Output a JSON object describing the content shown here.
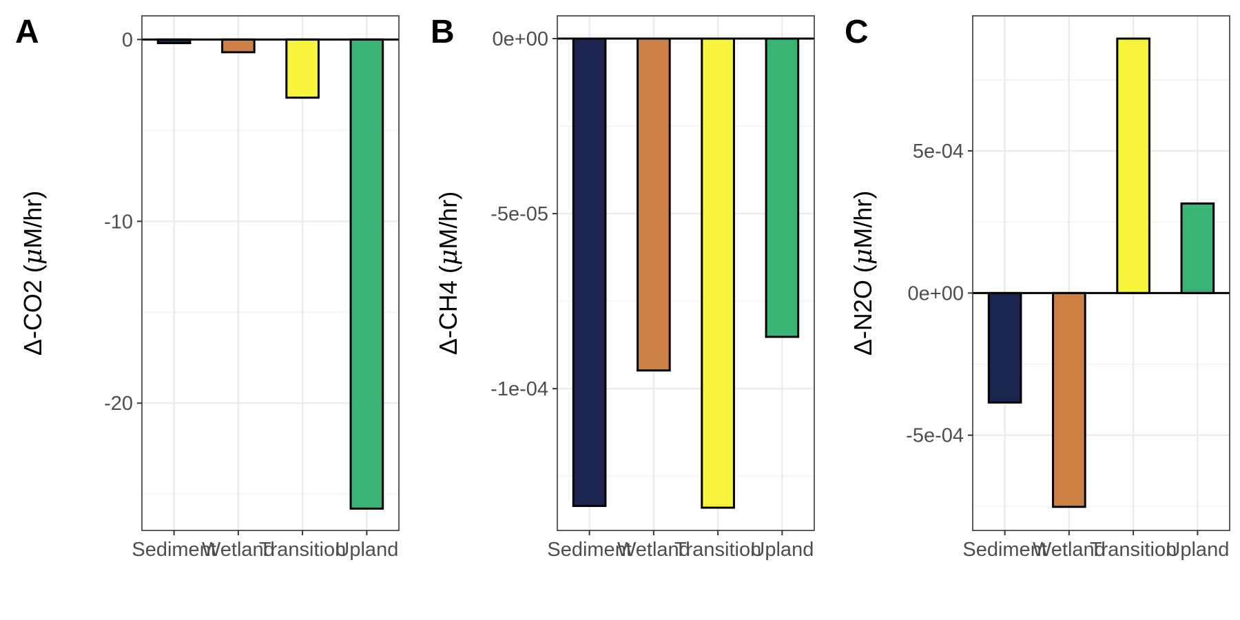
{
  "chart_data": [
    {
      "type": "bar",
      "panel": "A",
      "ylabel_prefix": "Δ-CO2 (",
      "ylabel_mu": "μ",
      "ylabel_suffix": "M/hr)",
      "categories": [
        "Sediment",
        "Wetland",
        "Transition",
        "Upland"
      ],
      "values": [
        -0.2,
        -0.7,
        -3.2,
        -25.8
      ],
      "ylim": [
        -27.0,
        1.3
      ],
      "yticks": [
        0,
        -10,
        -20
      ],
      "ytick_labels": [
        "0",
        "-10",
        "-20"
      ],
      "yminor": [
        -5,
        -15,
        -25
      ],
      "colors": [
        "#1b2550",
        "#cd8046",
        "#f8f33b",
        "#3ab474"
      ],
      "grid": true
    },
    {
      "type": "bar",
      "panel": "B",
      "ylabel_prefix": "Δ-CH4 (",
      "ylabel_mu": "μ",
      "ylabel_suffix": "M/hr)",
      "categories": [
        "Sediment",
        "Wetland",
        "Transition",
        "Upland"
      ],
      "values": [
        -0.0001335,
        -9.48e-05,
        -0.000134,
        -8.52e-05
      ],
      "ylim": [
        -0.0001405,
        6.5e-06
      ],
      "yticks": [
        0,
        -5e-05,
        -0.0001
      ],
      "ytick_labels": [
        "0e+00",
        "-5e-05",
        "-1e-04"
      ],
      "yminor": [
        -2.5e-05,
        -7.5e-05,
        -0.000125
      ],
      "colors": [
        "#1b2550",
        "#cd8046",
        "#f8f33b",
        "#3ab474"
      ],
      "grid": true
    },
    {
      "type": "bar",
      "panel": "C",
      "ylabel_prefix": "Δ-N2O (",
      "ylabel_mu": "μ",
      "ylabel_suffix": "M/hr)",
      "categories": [
        "Sediment",
        "Wetland",
        "Transition",
        "Upland"
      ],
      "values": [
        -0.000385,
        -0.000752,
        0.000895,
        0.000315
      ],
      "ylim": [
        -0.000835,
        0.000975
      ],
      "yticks": [
        0.0005,
        0,
        -0.0005
      ],
      "ytick_labels": [
        "5e-04",
        "0e+00",
        "-5e-04"
      ],
      "yminor": [
        0.00075,
        0.00025,
        -0.00025,
        -0.00075
      ],
      "colors": [
        "#1b2550",
        "#cd8046",
        "#f8f33b",
        "#3ab474"
      ],
      "grid": true
    }
  ]
}
